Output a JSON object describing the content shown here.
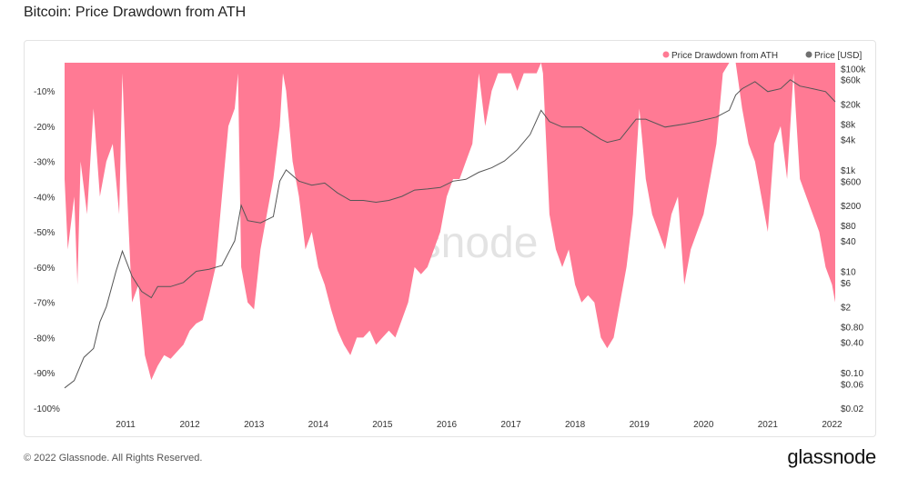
{
  "title": "Bitcoin: Price Drawdown from ATH",
  "footer": {
    "copyright": "© 2022 Glassnode. All Rights Reserved.",
    "logo": "glassnode"
  },
  "watermark": "glassnode",
  "colors": {
    "drawdown": "#ff7a94",
    "price": "#555555",
    "grid": "#e6e6e6"
  },
  "chart_data": {
    "type": "area",
    "title": "Bitcoin: Price Drawdown from ATH",
    "legend_position": "top-right",
    "x_ticks": [
      "2011",
      "2012",
      "2013",
      "2014",
      "2015",
      "2016",
      "2017",
      "2018",
      "2019",
      "2020",
      "2021",
      "2022"
    ],
    "x_range": [
      2010.55,
      2022.55
    ],
    "left_axis": {
      "label": "",
      "ticks": [
        "-10%",
        "-20%",
        "-30%",
        "-40%",
        "-50%",
        "-60%",
        "-70%",
        "-80%",
        "-90%",
        "-100%"
      ],
      "tick_values": [
        -10,
        -20,
        -30,
        -40,
        -50,
        -60,
        -70,
        -80,
        -90,
        -100
      ],
      "range": [
        -100,
        -2
      ]
    },
    "right_axis": {
      "label": "",
      "scale": "log",
      "ticks": [
        "$100k",
        "$60k",
        "$20k",
        "$8k",
        "$4k",
        "$1k",
        "$600",
        "$200",
        "$80",
        "$40",
        "$10",
        "$6",
        "$2",
        "$0.80",
        "$0.40",
        "$0.10",
        "$0.06",
        "$0.02"
      ],
      "tick_values": [
        100000,
        60000,
        20000,
        8000,
        4000,
        1000,
        600,
        200,
        80,
        40,
        10,
        6,
        2,
        0.8,
        0.4,
        0.1,
        0.06,
        0.02
      ],
      "range": [
        0.02,
        130000
      ]
    },
    "series": [
      {
        "name": "Price Drawdown from ATH",
        "axis": "left",
        "x": [
          2010.55,
          2010.6,
          2010.7,
          2010.75,
          2010.8,
          2010.9,
          2011.0,
          2011.1,
          2011.2,
          2011.3,
          2011.4,
          2011.45,
          2011.5,
          2011.6,
          2011.7,
          2011.8,
          2011.9,
          2012.0,
          2012.1,
          2012.2,
          2012.3,
          2012.4,
          2012.5,
          2012.6,
          2012.7,
          2012.8,
          2012.9,
          2013.0,
          2013.1,
          2013.2,
          2013.25,
          2013.3,
          2013.4,
          2013.5,
          2013.6,
          2013.7,
          2013.8,
          2013.9,
          2013.95,
          2014.0,
          2014.1,
          2014.2,
          2014.3,
          2014.4,
          2014.5,
          2014.6,
          2014.7,
          2014.8,
          2014.9,
          2015.0,
          2015.1,
          2015.2,
          2015.3,
          2015.4,
          2015.5,
          2015.6,
          2015.7,
          2015.8,
          2015.9,
          2016.0,
          2016.1,
          2016.2,
          2016.3,
          2016.4,
          2016.5,
          2016.6,
          2016.7,
          2016.8,
          2016.9,
          2017.0,
          2017.1,
          2017.2,
          2017.3,
          2017.4,
          2017.5,
          2017.6,
          2017.7,
          2017.8,
          2017.9,
          2017.97,
          2018.0,
          2018.1,
          2018.2,
          2018.3,
          2018.4,
          2018.5,
          2018.6,
          2018.7,
          2018.8,
          2018.9,
          2019.0,
          2019.1,
          2019.2,
          2019.3,
          2019.4,
          2019.5,
          2019.6,
          2019.7,
          2019.8,
          2019.9,
          2020.0,
          2020.1,
          2020.2,
          2020.3,
          2020.4,
          2020.5,
          2020.6,
          2020.7,
          2020.8,
          2020.9,
          2021.0,
          2021.1,
          2021.2,
          2021.3,
          2021.4,
          2021.5,
          2021.6,
          2021.7,
          2021.8,
          2021.9,
          2022.0,
          2022.1,
          2022.2,
          2022.3,
          2022.4,
          2022.5,
          2022.55
        ],
        "y": [
          -35,
          -55,
          -40,
          -65,
          -30,
          -45,
          -15,
          -40,
          -30,
          -25,
          -45,
          -5,
          -30,
          -70,
          -65,
          -85,
          -92,
          -88,
          -85,
          -86,
          -84,
          -82,
          -78,
          -76,
          -75,
          -68,
          -60,
          -40,
          -20,
          -15,
          -5,
          -60,
          -70,
          -72,
          -55,
          -45,
          -35,
          -20,
          -5,
          -10,
          -30,
          -40,
          -55,
          -50,
          -60,
          -65,
          -72,
          -78,
          -82,
          -85,
          -80,
          -80,
          -78,
          -82,
          -80,
          -78,
          -80,
          -75,
          -70,
          -60,
          -62,
          -60,
          -55,
          -50,
          -40,
          -35,
          -35,
          -30,
          -25,
          -5,
          -20,
          -10,
          -5,
          -5,
          -5,
          -10,
          -5,
          -5,
          -5,
          -2,
          -5,
          -45,
          -55,
          -60,
          -55,
          -65,
          -70,
          -68,
          -70,
          -80,
          -83,
          -80,
          -70,
          -60,
          -45,
          -15,
          -35,
          -45,
          -50,
          -55,
          -45,
          -40,
          -65,
          -55,
          -50,
          -45,
          -35,
          -25,
          -5,
          -2,
          -2,
          -15,
          -25,
          -30,
          -40,
          -50,
          -25,
          -20,
          -35,
          -5,
          -35,
          -40,
          -45,
          -50,
          -60,
          -65,
          -70
        ]
      },
      {
        "name": "Price [USD]",
        "axis": "right",
        "x": [
          2010.55,
          2010.7,
          2010.85,
          2011.0,
          2011.1,
          2011.2,
          2011.35,
          2011.45,
          2011.6,
          2011.75,
          2011.9,
          2012.0,
          2012.2,
          2012.4,
          2012.6,
          2012.8,
          2013.0,
          2013.2,
          2013.3,
          2013.4,
          2013.6,
          2013.8,
          2013.9,
          2014.0,
          2014.2,
          2014.4,
          2014.6,
          2014.8,
          2015.0,
          2015.2,
          2015.4,
          2015.6,
          2015.8,
          2016.0,
          2016.2,
          2016.4,
          2016.6,
          2016.8,
          2017.0,
          2017.2,
          2017.4,
          2017.6,
          2017.8,
          2017.97,
          2018.1,
          2018.3,
          2018.6,
          2018.9,
          2019.0,
          2019.2,
          2019.45,
          2019.6,
          2019.9,
          2020.2,
          2020.4,
          2020.7,
          2020.9,
          2021.0,
          2021.1,
          2021.3,
          2021.5,
          2021.7,
          2021.85,
          2022.0,
          2022.2,
          2022.4,
          2022.55
        ],
        "y": [
          0.05,
          0.07,
          0.2,
          0.3,
          1,
          2,
          10,
          25,
          8,
          4,
          3,
          5,
          5,
          6,
          10,
          11,
          13,
          40,
          200,
          100,
          90,
          120,
          600,
          1000,
          600,
          500,
          550,
          350,
          250,
          250,
          230,
          250,
          300,
          400,
          420,
          450,
          600,
          650,
          900,
          1100,
          1500,
          2500,
          5000,
          15000,
          9000,
          7000,
          7000,
          4000,
          3500,
          4000,
          10000,
          10000,
          7000,
          8000,
          9000,
          11000,
          15000,
          30000,
          40000,
          55000,
          35000,
          40000,
          60000,
          45000,
          40000,
          35000,
          22000
        ]
      }
    ]
  }
}
